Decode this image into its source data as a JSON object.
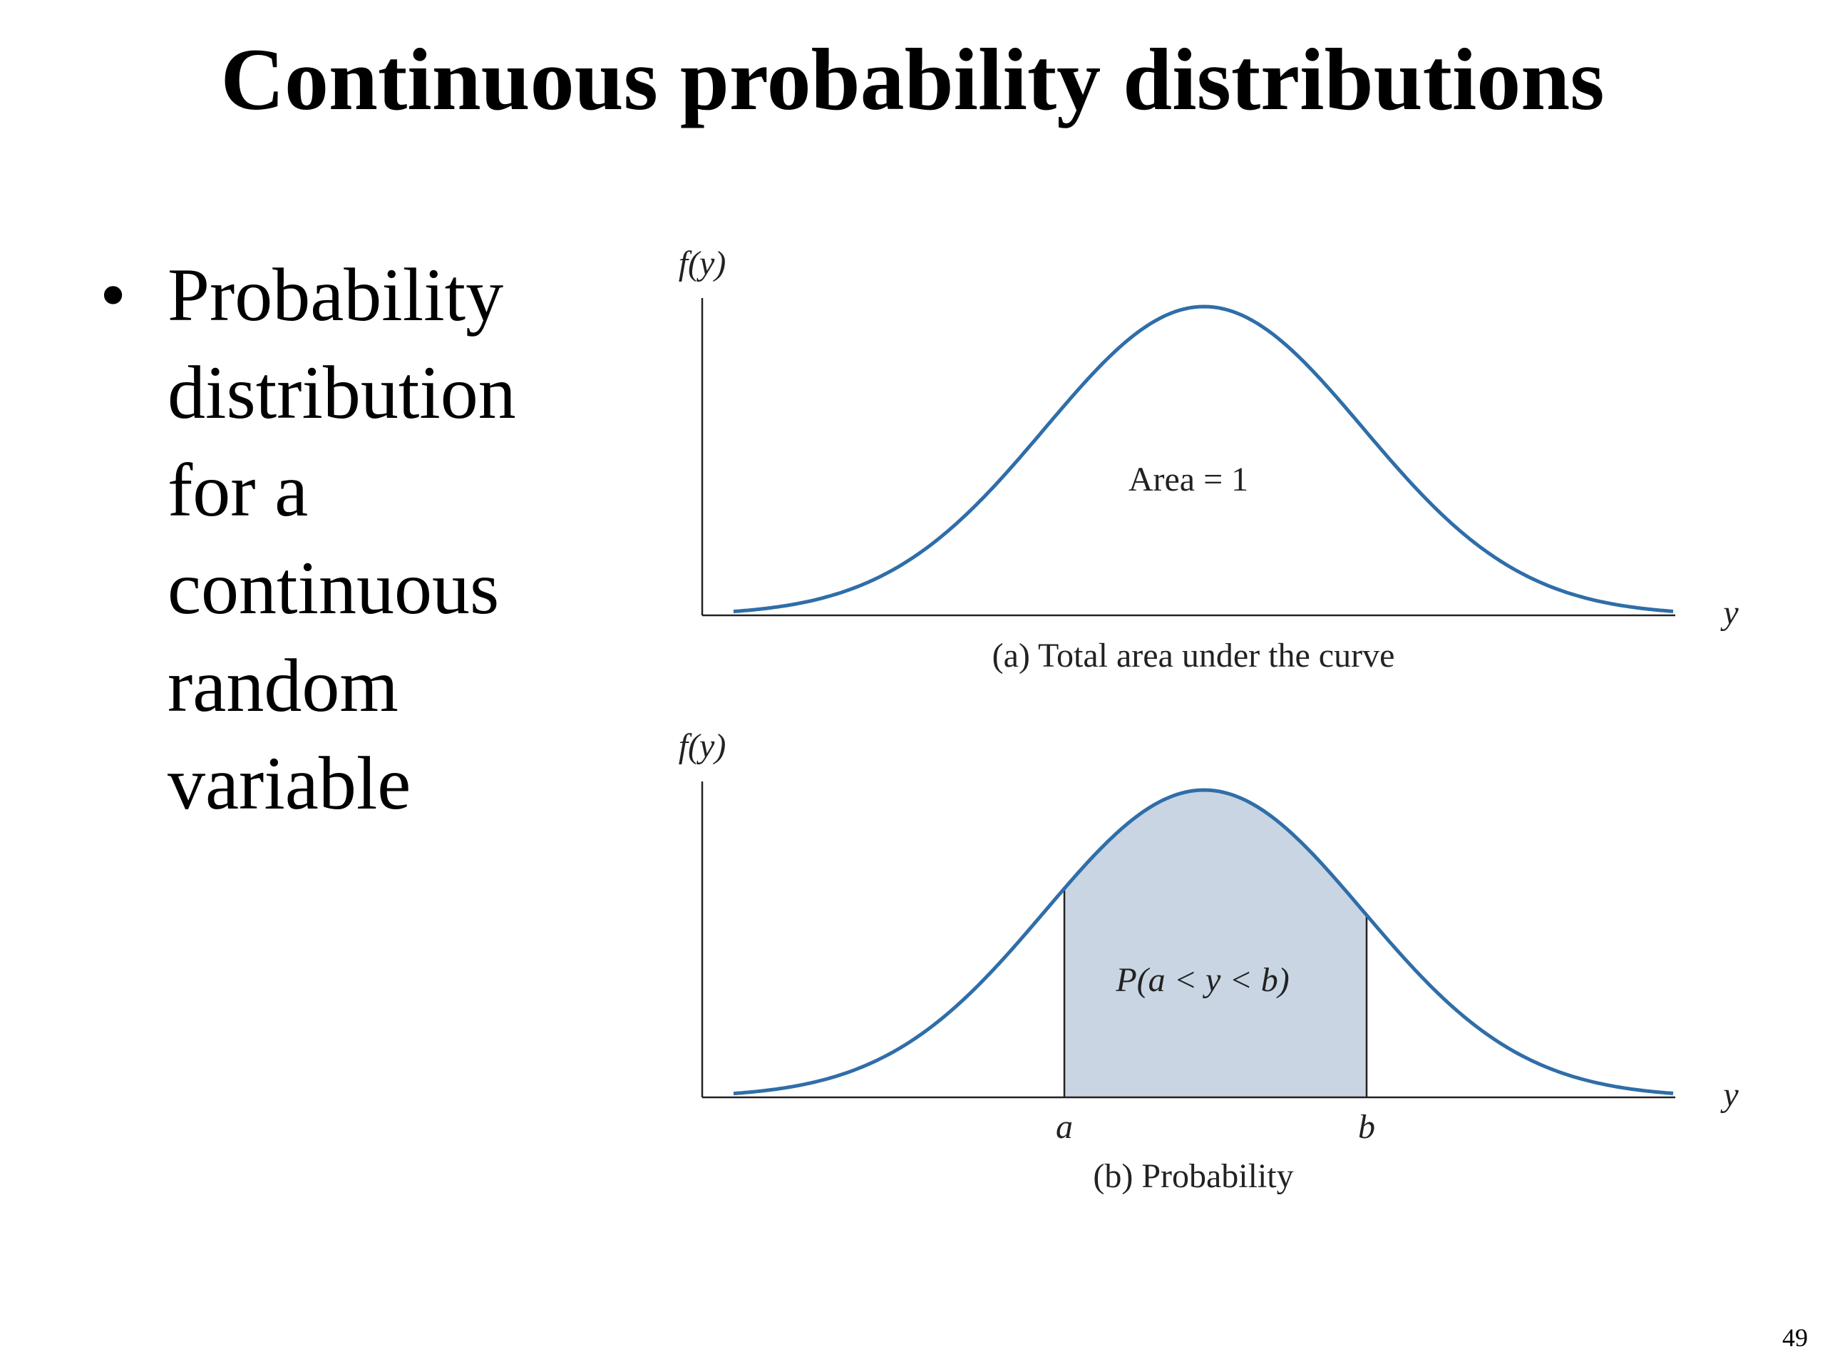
{
  "title": "Continuous probability distributions",
  "bullet": "Probability distribution for a continuous random variable",
  "figures": [
    {
      "y_axis_label": "f(y)",
      "x_axis_label": "y",
      "area_label": "Area = 1",
      "caption": "(a) Total area under the curve"
    },
    {
      "y_axis_label": "f(y)",
      "x_axis_label": "y",
      "area_label": "P(a < y < b)",
      "caption": "(b) Probability",
      "bounds": [
        "a",
        "b"
      ]
    }
  ],
  "page_number": "49"
}
